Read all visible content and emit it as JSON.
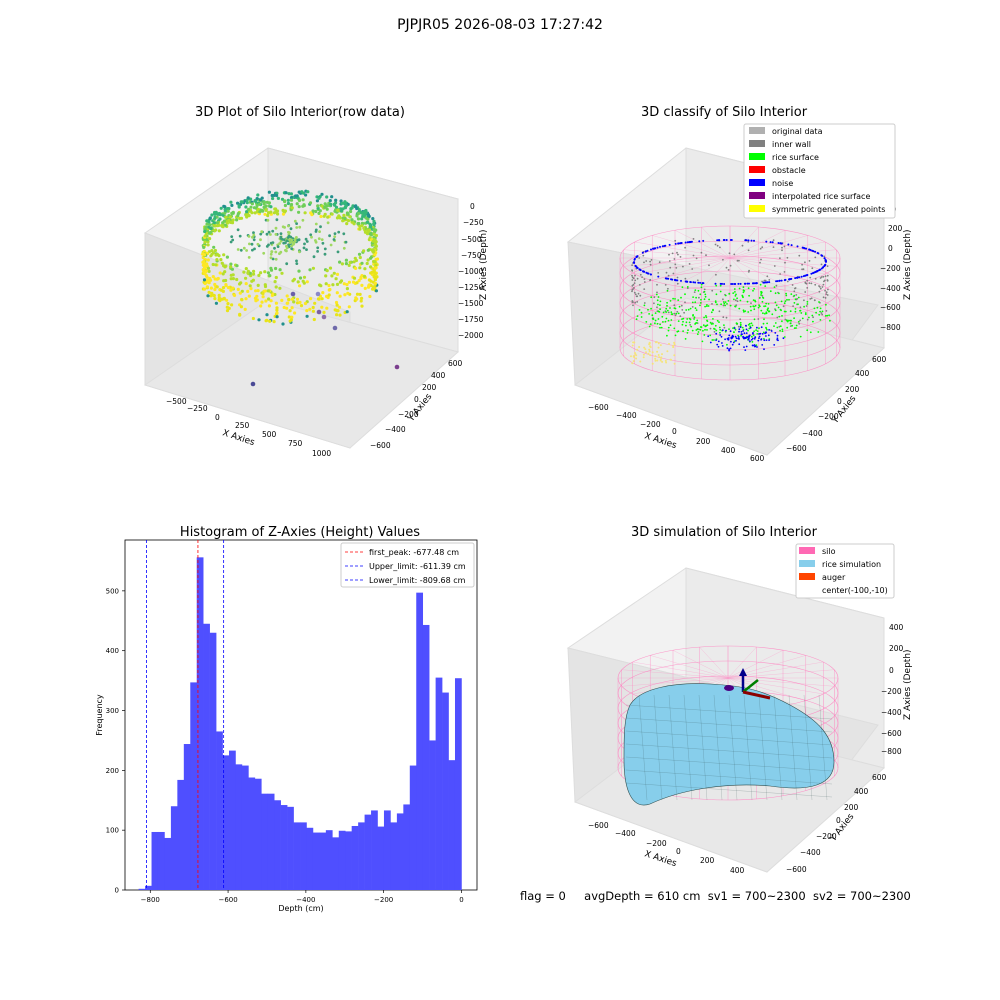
{
  "suptitle": "PJPJR05 2026-08-03 17:27:42",
  "status": {
    "flag": "flag = 0",
    "avgDepth": "avgDepth = 610 cm",
    "sv1": "sv1 = 700~2300",
    "sv2": "sv2 = 700~2300"
  },
  "colors": {
    "hist": "#4f4fff",
    "peak": "#ff0000",
    "limit": "#0000ff",
    "pink": "#ff7fbf",
    "rice": "#87ceeb",
    "gray": "#808080",
    "green": "#00ff00",
    "noise": "#0000ff",
    "yellow": "#ffff00"
  },
  "chart_data": [
    {
      "type": "scatter",
      "title": "3D Plot of Silo Interior(row data)",
      "xlabel": "X Axies",
      "ylabel": "Y Axies",
      "zlabel": "Z Axies (Depth)",
      "xticks": [
        "−500",
        "−250",
        "0",
        "250",
        "500",
        "750",
        "1000"
      ],
      "yticks": [
        "−600",
        "−400",
        "−200",
        "0",
        "200",
        "400",
        "600"
      ],
      "zticks": [
        "0",
        "−250",
        "−500",
        "−750",
        "−1000",
        "−1250",
        "−1500",
        "−1750",
        "−2000"
      ],
      "xlim": [
        -600,
        1100
      ],
      "ylim": [
        -700,
        700
      ],
      "zlim": [
        -2100,
        100
      ],
      "colormap": "viridis",
      "outliers": [
        {
          "x": 20,
          "y": 350,
          "z": -1300
        },
        {
          "x": 200,
          "y": 350,
          "z": -1300
        },
        {
          "x": 120,
          "y": 100,
          "z": -1600
        },
        {
          "x": 200,
          "y": -100,
          "z": -1700
        },
        {
          "x": 150,
          "y": -250,
          "z": -1900
        },
        {
          "x": 600,
          "y": -600,
          "z": -2000
        },
        {
          "x": 750,
          "y": 600,
          "z": -1800
        }
      ]
    },
    {
      "type": "scatter",
      "title": "3D classify of Silo Interior",
      "xlabel": "X Axies",
      "ylabel": "Y Axies",
      "zlabel": "Z Axies (Depth)",
      "xticks": [
        "−600",
        "−400",
        "−200",
        "0",
        "200",
        "400",
        "600"
      ],
      "yticks": [
        "−600",
        "−400",
        "−200",
        "0",
        "200",
        "400",
        "600"
      ],
      "zticks": [
        "200",
        "0",
        "−200",
        "−400",
        "−600",
        "−800"
      ],
      "legend_position": "top-right",
      "legend": [
        {
          "label": "original data",
          "color": "#b0b0b0"
        },
        {
          "label": "inner wall",
          "color": "#808080"
        },
        {
          "label": "rice surface",
          "color": "#00ff00"
        },
        {
          "label": "obstacle",
          "color": "#ff0000"
        },
        {
          "label": "noise",
          "color": "#0000ff"
        },
        {
          "label": "interpolated rice surface",
          "color": "#800080"
        },
        {
          "label": "symmetric generated points",
          "color": "#ffff00"
        }
      ]
    },
    {
      "type": "bar",
      "title": "Histogram of Z-Axies (Height) Values",
      "xlabel": "Depth (cm)",
      "ylabel": "Frequency",
      "xlim": [
        -865,
        40
      ],
      "ylim": [
        0,
        585
      ],
      "xticks": [
        "−800",
        "−600",
        "−400",
        "−200",
        "0"
      ],
      "xtick_values": [
        -800,
        -600,
        -400,
        -200,
        0
      ],
      "yticks": [
        "0",
        "100",
        "200",
        "300",
        "400",
        "500"
      ],
      "ytick_values": [
        0,
        100,
        200,
        300,
        400,
        500
      ],
      "bin_start": -830,
      "bin_width": 16.6,
      "values": [
        2,
        7,
        97,
        97,
        87,
        140,
        184,
        244,
        347,
        556,
        445,
        430,
        265,
        225,
        233,
        210,
        208,
        188,
        186,
        161,
        161,
        150,
        142,
        139,
        113,
        113,
        104,
        96,
        96,
        100,
        88,
        99,
        98,
        107,
        113,
        126,
        133,
        106,
        133,
        113,
        128,
        143,
        208,
        497,
        443,
        250,
        355,
        330,
        217,
        354
      ],
      "vlines": [
        {
          "label": "first_peak: -677.48 cm",
          "x": -677.48,
          "color": "#ff0000"
        },
        {
          "label": "Upper_limit: -611.39 cm",
          "x": -611.39,
          "color": "#0000ff"
        },
        {
          "label": "Lower_limit: -809.68 cm",
          "x": -809.68,
          "color": "#0000ff"
        }
      ],
      "legend_position": "top-right"
    },
    {
      "type": "area",
      "title": "3D simulation of Silo Interior",
      "xlabel": "X Axies",
      "ylabel": "Y Axies",
      "zlabel": "Z Axies (Depth)",
      "xticks": [
        "−600",
        "−400",
        "−200",
        "0",
        "200",
        "400"
      ],
      "yticks": [
        "−600",
        "−400",
        "−200",
        "0",
        "200",
        "400",
        "600"
      ],
      "zticks": [
        "400",
        "200",
        "0",
        "−200",
        "−400",
        "−600",
        "−800"
      ],
      "legend_position": "top-right",
      "legend": [
        {
          "label": "silo",
          "color": "#ff69b4"
        },
        {
          "label": "rice simulation",
          "color": "#87ceeb"
        },
        {
          "label": "auger",
          "color": "#ff4500"
        },
        {
          "label": "center(-100,-10)",
          "color": ""
        }
      ]
    }
  ]
}
